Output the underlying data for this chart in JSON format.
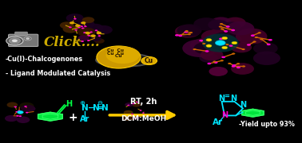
{
  "bg_color": "#000000",
  "cyan_color": "#00e5ff",
  "green_color": "#00ff44",
  "yellow_color": "#ffdd00",
  "magenta_color": "#ff00cc",
  "orange_color": "#cc6600",
  "gold_color": "#cc9900",
  "white_color": "#ffffff",
  "arrow_color": "#ffcc00",
  "click_color": "#ccaa00",
  "text_cu_chalc": "-Cu(I)-Chalcogenones",
  "text_ligand": "- Ligand Modulated Catalysis",
  "text_click": "Click....",
  "text_rt": "RT, 2h",
  "text_dcm": "DCM:MeOH",
  "text_yield": "-Yield upto 93%",
  "text_cu": "Cu",
  "figw": 3.78,
  "figh": 1.8
}
